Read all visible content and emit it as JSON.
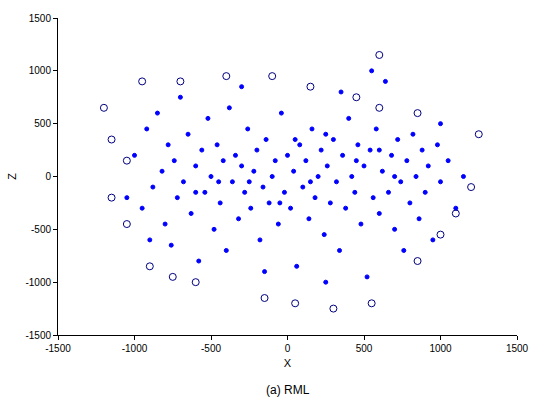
{
  "chart_data": {
    "type": "scatter",
    "caption": "(a) RML",
    "xlabel": "X",
    "ylabel": "Z",
    "xlim": [
      -1500,
      1500
    ],
    "xticks": [
      -1500,
      -1000,
      -500,
      0,
      500,
      1000,
      1500
    ],
    "ylim": [
      -1500,
      1500
    ],
    "yticks": [
      -1500,
      -1000,
      -500,
      0,
      500,
      1000,
      1500
    ],
    "grid": false,
    "series": [
      {
        "color": "#0000ff",
        "marker": "dot",
        "x": [
          -1000,
          -950,
          -920,
          -880,
          -850,
          -820,
          -800,
          -780,
          -760,
          -740,
          -720,
          -700,
          -680,
          -650,
          -630,
          -600,
          -580,
          -560,
          -540,
          -520,
          -500,
          -480,
          -460,
          -440,
          -420,
          -400,
          -380,
          -360,
          -340,
          -320,
          -300,
          -280,
          -260,
          -240,
          -220,
          -200,
          -180,
          -160,
          -140,
          -120,
          -100,
          -80,
          -60,
          -40,
          -20,
          0,
          20,
          40,
          60,
          80,
          100,
          120,
          140,
          160,
          180,
          200,
          220,
          240,
          260,
          280,
          300,
          320,
          340,
          360,
          380,
          400,
          420,
          440,
          460,
          480,
          500,
          520,
          540,
          560,
          580,
          600,
          620,
          640,
          660,
          680,
          700,
          720,
          740,
          760,
          780,
          800,
          820,
          840,
          860,
          880,
          900,
          920,
          950,
          980,
          1000,
          1050,
          1100,
          1150,
          -150,
          250,
          -300,
          350,
          550,
          -900,
          1000,
          -1050,
          150,
          -50,
          450,
          -250,
          700,
          -600,
          250,
          -450,
          50,
          600
        ],
        "values": [
          200,
          -300,
          450,
          -100,
          600,
          50,
          -450,
          300,
          -650,
          150,
          -200,
          750,
          -50,
          400,
          -350,
          100,
          -800,
          250,
          -150,
          550,
          0,
          -500,
          300,
          -250,
          150,
          -700,
          650,
          -50,
          200,
          -400,
          100,
          -150,
          450,
          -300,
          50,
          250,
          -600,
          -100,
          350,
          -250,
          0,
          150,
          -450,
          600,
          -150,
          200,
          -300,
          50,
          -850,
          300,
          -100,
          150,
          -400,
          450,
          -200,
          0,
          250,
          -550,
          100,
          -250,
          350,
          -50,
          -700,
          200,
          -300,
          550,
          0,
          -150,
          300,
          -450,
          100,
          -950,
          250,
          -200,
          450,
          -350,
          50,
          900,
          -150,
          200,
          -500,
          350,
          -50,
          -700,
          150,
          -250,
          400,
          0,
          -400,
          250,
          -150,
          100,
          -600,
          300,
          -50,
          150,
          -300,
          0,
          -900,
          -1000,
          850,
          800,
          1000,
          -600,
          500,
          -200,
          -50,
          -250,
          150,
          -50,
          0,
          -150,
          400,
          -50,
          350,
          250
        ]
      },
      {
        "color": "#000080",
        "marker": "circle-open",
        "x": [
          -1200,
          -1150,
          -1050,
          -1150,
          -1050,
          -900,
          -750,
          -600,
          -150,
          50,
          300,
          550,
          850,
          1000,
          1100,
          1200,
          1250,
          850,
          600,
          450,
          150,
          -100,
          -400,
          -700,
          -950,
          600
        ],
        "values": [
          650,
          350,
          150,
          -200,
          -450,
          -850,
          -950,
          -1000,
          -1150,
          -1200,
          -1250,
          -1200,
          -800,
          -550,
          -350,
          -100,
          400,
          600,
          650,
          750,
          850,
          950,
          950,
          900,
          900,
          1150
        ]
      }
    ]
  }
}
